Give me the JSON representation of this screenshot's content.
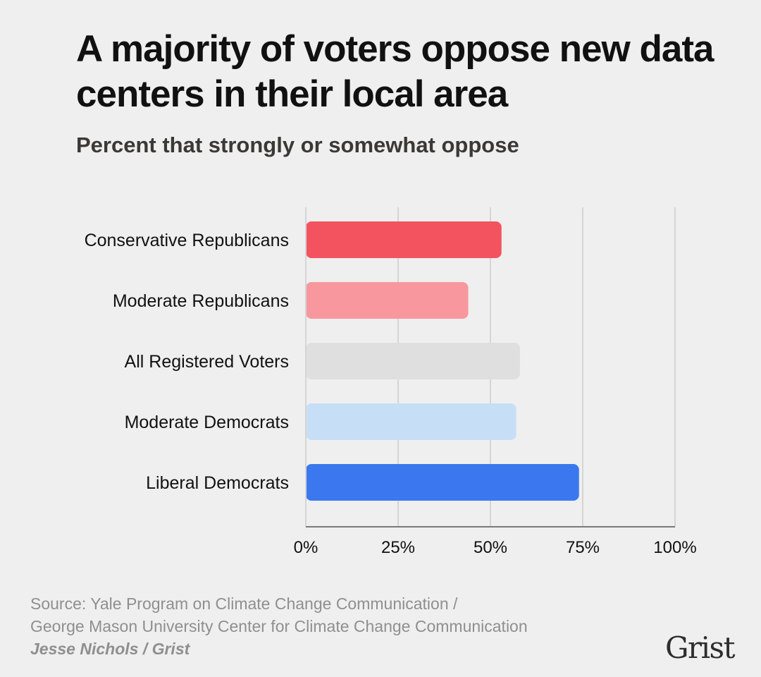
{
  "title": "A majority of voters oppose new data centers in their local area",
  "subtitle": "Percent that strongly or somewhat oppose",
  "chart_data": {
    "type": "bar",
    "orientation": "horizontal",
    "title": "A majority of voters oppose new data centers in their local area",
    "subtitle": "Percent that strongly or somewhat oppose",
    "xlabel": "",
    "ylabel": "",
    "xlim": [
      0,
      100
    ],
    "grid": true,
    "legend": "none",
    "categories": [
      "Conservative Republicans",
      "Moderate Republicans",
      "All Registered Voters",
      "Moderate Democrats",
      "Liberal Democrats"
    ],
    "values": [
      53,
      44,
      58,
      57,
      74
    ],
    "colors": [
      "#f2535f",
      "#f8979e",
      "#dfdfdf",
      "#c7dff6",
      "#3b78ef"
    ],
    "x_ticks": [
      0,
      25,
      50,
      75,
      100
    ],
    "x_tick_labels": [
      "0%",
      "25%",
      "50%",
      "75%",
      "100%"
    ],
    "gridline_color": "#d5d5d5",
    "axis_color": "#7a7a7a"
  },
  "footer": {
    "source_line1": "Source: Yale Program on Climate Change Communication /",
    "source_line2": "George Mason University Center for Climate Change Communication",
    "credit": "Jesse Nichols / Grist",
    "logo": "Grist"
  }
}
